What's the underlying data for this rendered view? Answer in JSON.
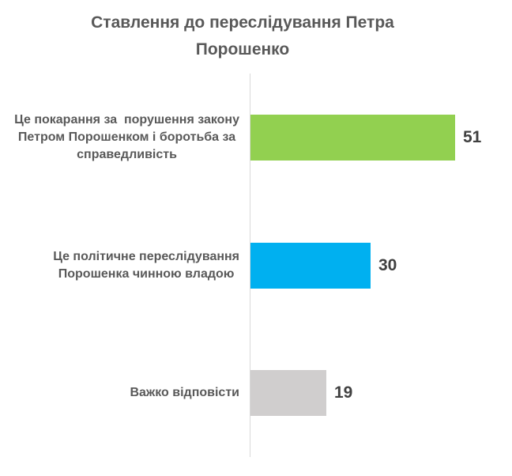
{
  "chart_data": {
    "type": "bar",
    "orientation": "horizontal",
    "title": "Ставлення до переслідування Петра\nПорошенко",
    "categories": [
      "Це покарання за  порушення закону\nПетром Порошенком і боротьба за\nсправедливість",
      "Це політичне переслідування\nПорошенка чинною владою",
      "Важко відповісти"
    ],
    "values": [
      51,
      30,
      19
    ],
    "colors": [
      "#92D050",
      "#00B0F0",
      "#D0CECE"
    ],
    "axis_line_color": "#D9D9D9",
    "title_color": "#595959",
    "label_color": "#595959",
    "value_color": "#404040",
    "xlim": [
      0,
      64
    ],
    "grid": false,
    "legend": false,
    "data_labels_position": "outside-end"
  }
}
